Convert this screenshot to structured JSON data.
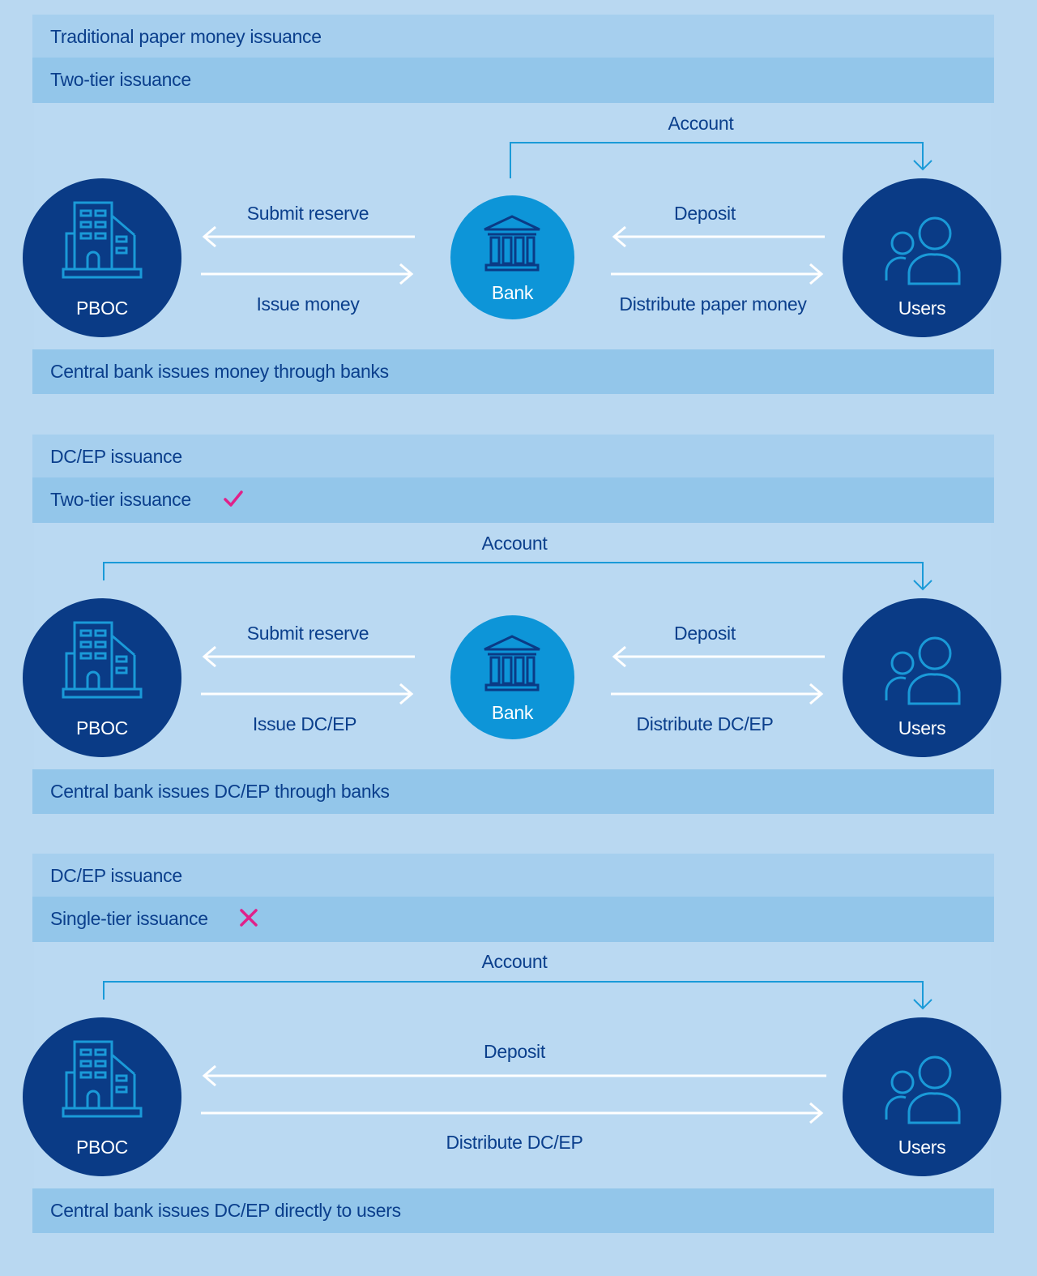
{
  "panels": [
    {
      "section_title": "Traditional paper money issuance",
      "mode_title": "Two-tier issuance",
      "mode_mark": "",
      "caption": "Central bank issues money through banks",
      "account_label": "Account",
      "nodes": {
        "central": "PBOC",
        "bank": "Bank",
        "users": "Users"
      },
      "left_flow": {
        "upper": "Submit reserve",
        "lower": "Issue money"
      },
      "right_flow": {
        "upper": "Deposit",
        "lower": "Distribute paper money"
      }
    },
    {
      "section_title": "DC/EP issuance",
      "mode_title": "Two-tier issuance",
      "mode_mark": "check",
      "caption": "Central bank issues DC/EP through banks",
      "account_label": "Account",
      "nodes": {
        "central": "PBOC",
        "bank": "Bank",
        "users": "Users"
      },
      "left_flow": {
        "upper": "Submit reserve",
        "lower": "Issue DC/EP"
      },
      "right_flow": {
        "upper": "Deposit",
        "lower": "Distribute DC/EP"
      }
    },
    {
      "section_title": "DC/EP issuance",
      "mode_title": "Single-tier issuance",
      "mode_mark": "cross",
      "caption": "Central bank issues DC/EP directly to users",
      "account_label": "Account",
      "nodes": {
        "central": "PBOC",
        "users": "Users"
      },
      "direct_flow": {
        "upper": "Deposit",
        "lower": "Distribute DC/EP"
      }
    }
  ],
  "colors": {
    "background": "#b9d8f1",
    "header_band": "#a6cfee",
    "subheader_band": "#93c6ea",
    "dark_node": "#0a3b86",
    "bank_node": "#0d95d8",
    "text": "#0b3f8c",
    "account_line": "#1a9ad8",
    "check_mark": "#e0218a",
    "cross_mark": "#e0218a"
  }
}
